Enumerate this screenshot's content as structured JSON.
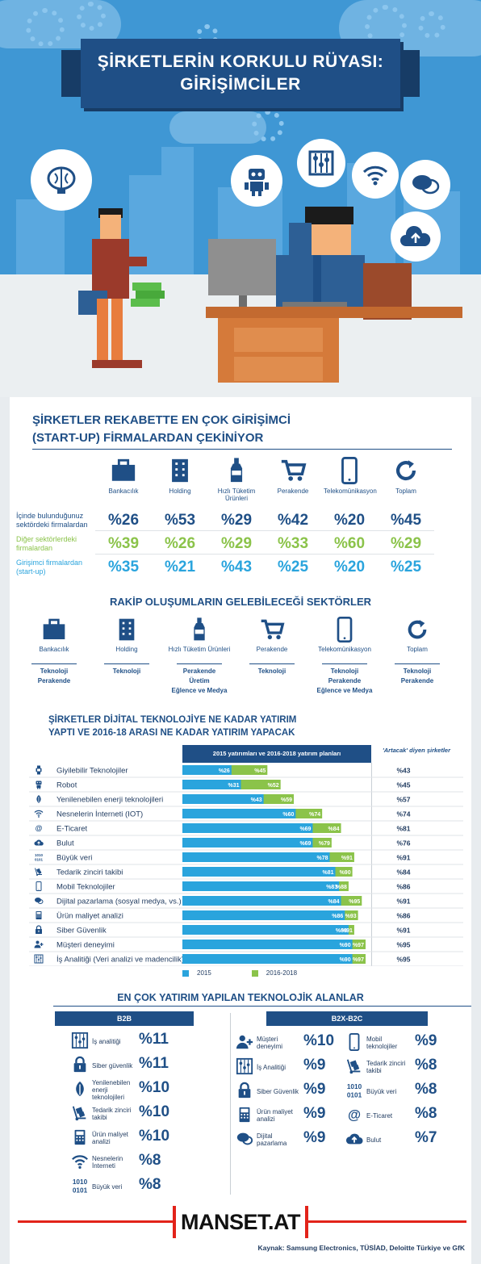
{
  "title": {
    "line1": "ŞİRKETLERİN KORKULU RÜYASI:",
    "line2": "GİRİŞİMCİLER"
  },
  "section1": {
    "title_line1": "ŞİRKETLER REKABETTE EN ÇOK GİRİŞİMCİ",
    "title_line2": "(START-UP) FİRMALARDAN ÇEKİNİYOR",
    "columns": [
      "Bankacılık",
      "Holding",
      "Hızlı Tüketim Ürünleri",
      "Perakende",
      "Telekomünikasyon",
      "Toplam"
    ],
    "rows": [
      {
        "label": "İçinde bulunduğunuz sektördeki firmalardan",
        "values": [
          "%26",
          "%53",
          "%29",
          "%42",
          "%20",
          "%45"
        ]
      },
      {
        "label": "Diğer sektörlerdeki firmalardan",
        "values": [
          "%39",
          "%26",
          "%29",
          "%33",
          "%60",
          "%29"
        ]
      },
      {
        "label": "Girişimci firmalardan (start-up)",
        "values": [
          "%35",
          "%21",
          "%43",
          "%25",
          "%20",
          "%25"
        ]
      }
    ]
  },
  "section2": {
    "title": "RAKİP OLUŞUMLARIN GELEBİLECEĞİ SEKTÖRLER",
    "columns": [
      {
        "label": "Bankacılık",
        "sectors": [
          "Teknoloji",
          "Perakende"
        ]
      },
      {
        "label": "Holding",
        "sectors": [
          "Teknoloji"
        ]
      },
      {
        "label": "Hızlı Tüketim Ürünleri",
        "sectors": [
          "Perakende",
          "Üretim",
          "Eğlence ve Medya"
        ]
      },
      {
        "label": "Perakende",
        "sectors": [
          "Teknoloji"
        ]
      },
      {
        "label": "Telekomünikasyon",
        "sectors": [
          "Teknoloji",
          "Perakende",
          "Eğlence ve Medya"
        ]
      },
      {
        "label": "Toplam",
        "sectors": [
          "Teknoloji",
          "Perakende"
        ]
      }
    ]
  },
  "section3": {
    "title_line1": "ŞİRKETLER DİJİTAL TEKNOLOJİYE NE KADAR YATIRIM",
    "title_line2": "YAPTI VE 2016-18 ARASI NE KADAR YATIRIM YAPACAK",
    "col_header": "2015 yatırımları ve 2016-2018 yatırım planları",
    "art_header": "'Artacak' diyen şirketler",
    "legend": [
      "2015",
      "2016-2018"
    ],
    "colors": {
      "y2015": "#2aa4dd",
      "y2016": "#8bc34a"
    }
  },
  "chart_data": {
    "type": "bar",
    "categories": [
      "Giyilebilir Teknolojiler",
      "Robot",
      "Yenilenebilen enerji teknolojileri",
      "Nesnelerin İnterneti (IOT)",
      "E-Ticaret",
      "Bulut",
      "Büyük veri",
      "Tedarik zinciri takibi",
      "Mobil Teknolojiler",
      "Dijital pazarlama (sosyal medya, vs.)",
      "Ürün maliyet analizi",
      "Siber Güvenlik",
      "Müşteri deneyimi",
      "İş Analitiği (Veri analizi ve madencilik)"
    ],
    "series": [
      {
        "name": "2015",
        "values": [
          26,
          31,
          43,
          60,
          69,
          69,
          78,
          81,
          83,
          84,
          86,
          88,
          90,
          90
        ],
        "labels": [
          "%26",
          "%31",
          "%43",
          "%60",
          "%69",
          "%69",
          "%78",
          "%81",
          "%83",
          "%84",
          "%86",
          "%88",
          "%90",
          "%90"
        ]
      },
      {
        "name": "2016-2018",
        "values": [
          45,
          52,
          59,
          74,
          84,
          79,
          91,
          90,
          88,
          95,
          93,
          91,
          97,
          97
        ],
        "labels": [
          "%45",
          "%52",
          "%59",
          "%74",
          "%84",
          "%79",
          "%91",
          "%90",
          "%88",
          "%95",
          "%93",
          "%91",
          "%97",
          "%97"
        ]
      }
    ],
    "artacak": [
      "%43",
      "%45",
      "%57",
      "%74",
      "%81",
      "%76",
      "%91",
      "%84",
      "%86",
      "%91",
      "%86",
      "%91",
      "%95",
      "%95"
    ],
    "icons": [
      "watch-icon",
      "robot-icon",
      "leaf-icon",
      "wifi-icon",
      "at-icon",
      "cloud-icon",
      "binary-icon",
      "dolly-icon",
      "phone-icon",
      "chat-icon",
      "calculator-icon",
      "lock-icon",
      "user-plus-icon",
      "abacus-icon"
    ],
    "xlim": [
      0,
      100
    ]
  },
  "section4": {
    "title": "EN ÇOK YATIRIM YAPILAN TEKNOLOJİK ALANLAR",
    "b2b_label": "B2B",
    "b2c_label": "B2X-B2C",
    "b2b": [
      {
        "label": "İş analitiği",
        "value": "%11",
        "icon": "abacus-icon"
      },
      {
        "label": "Siber güvenlik",
        "value": "%11",
        "icon": "lock-icon"
      },
      {
        "label": "Yenilenebilen enerji teknolojileri",
        "value": "%10",
        "icon": "leaf-icon"
      },
      {
        "label": "Tedarik zinciri takibi",
        "value": "%10",
        "icon": "dolly-icon"
      },
      {
        "label": "Ürün maliyet analizi",
        "value": "%10",
        "icon": "calculator-icon"
      },
      {
        "label": "Nesnelerin İnterneti",
        "value": "%8",
        "icon": "wifi-icon"
      },
      {
        "label": "Büyük veri",
        "value": "%8",
        "icon": "binary-icon"
      }
    ],
    "b2c_left": [
      {
        "label": "Müşteri deneyimi",
        "value": "%10",
        "icon": "user-plus-icon"
      },
      {
        "label": "İş Analitiği",
        "value": "%9",
        "icon": "abacus-icon"
      },
      {
        "label": "Siber Güvenlik",
        "value": "%9",
        "icon": "lock-icon"
      },
      {
        "label": "Ürün maliyet analizi",
        "value": "%9",
        "icon": "calculator-icon"
      },
      {
        "label": "Dijital pazarlama",
        "value": "%9",
        "icon": "chat-icon"
      }
    ],
    "b2c_right": [
      {
        "label": "Mobil teknolojiler",
        "value": "%9",
        "icon": "phone-icon"
      },
      {
        "label": "Tedarik zinciri takibi",
        "value": "%8",
        "icon": "dolly-icon"
      },
      {
        "label": "Büyük veri",
        "value": "%8",
        "icon": "binary-icon"
      },
      {
        "label": "E-Ticaret",
        "value": "%8",
        "icon": "at-icon"
      },
      {
        "label": "Bulut",
        "value": "%7",
        "icon": "cloud-icon"
      }
    ]
  },
  "footer": {
    "logo": "MANSET.AT",
    "source": "Kaynak: Samsung Electronics, TÜSİAD, Deloitte Türkiye ve GfK"
  }
}
